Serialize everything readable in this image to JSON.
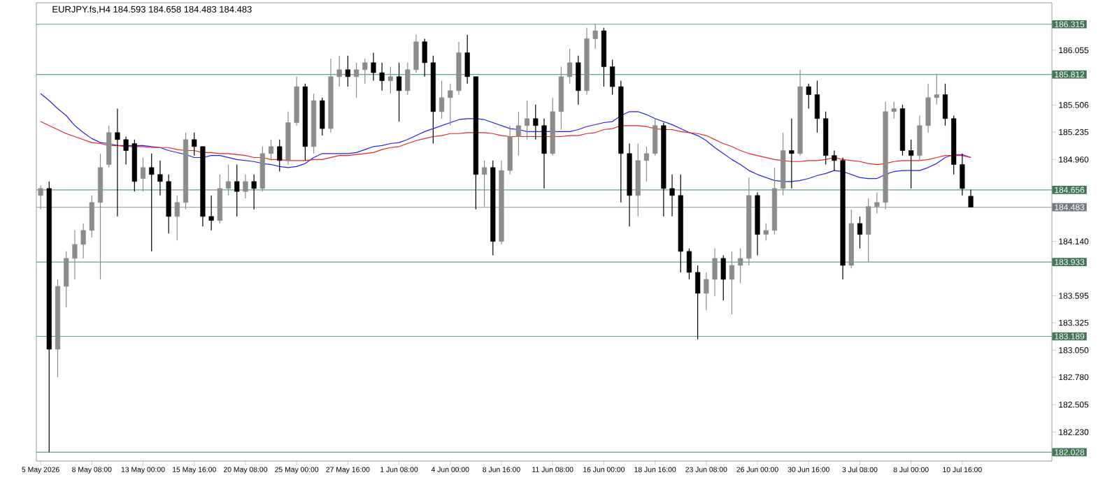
{
  "chart_data": {
    "type": "candlestick",
    "title": "EURJPY.fs,H4 184.593 184.658 184.483 184.483",
    "categories": [
      "5 May 2026",
      null,
      null,
      null,
      null,
      null,
      "8 May 08:00",
      null,
      null,
      null,
      null,
      null,
      "13 May 00:00",
      null,
      null,
      null,
      null,
      null,
      "15 May 16:00",
      null,
      null,
      null,
      null,
      null,
      "20 May 08:00",
      null,
      null,
      null,
      null,
      null,
      "25 May 00:00",
      null,
      null,
      null,
      null,
      null,
      "27 May 16:00",
      null,
      null,
      null,
      null,
      null,
      "1 Jun 08:00",
      null,
      null,
      null,
      null,
      null,
      "4 Jun 00:00",
      null,
      null,
      null,
      null,
      null,
      "8 Jun 16:00",
      null,
      null,
      null,
      null,
      null,
      "11 Jun 08:00",
      null,
      null,
      null,
      null,
      null,
      "16 Jun 00:00",
      null,
      null,
      null,
      null,
      null,
      "18 Jun 16:00",
      null,
      null,
      null,
      null,
      null,
      "23 Jun 08:00",
      null,
      null,
      null,
      null,
      null,
      "26 Jun 00:00",
      null,
      null,
      null,
      null,
      null,
      "30 Jun 16:00",
      null,
      null,
      null,
      null,
      null,
      "3 Jul 08:00",
      null,
      null,
      null,
      null,
      null,
      "8 Jul 00:00",
      null,
      null,
      null,
      null,
      null,
      "10 Jul 16:00",
      null,
      null,
      null,
      null,
      null,
      null,
      null,
      null,
      null,
      null
    ],
    "colors": [
      "#8c8c8c",
      "#000000",
      "#8c8c8c",
      "#8c8c8c",
      "#8c8c8c",
      "#8c8c8c",
      "#8c8c8c",
      "#8c8c8c",
      "#8c8c8c",
      "#000000",
      "#000000",
      "#000000",
      "#8c8c8c",
      "#000000",
      "#000000",
      "#000000",
      "#8c8c8c",
      "#8c8c8c",
      "#000000",
      "#000000",
      "#000000",
      "#8c8c8c",
      "#8c8c8c",
      "#000000",
      "#8c8c8c",
      "#000000",
      "#8c8c8c",
      "#8c8c8c",
      "#000000",
      "#8c8c8c",
      "#8c8c8c",
      "#000000",
      "#8c8c8c",
      "#000000",
      "#8c8c8c",
      "#8c8c8c",
      "#000000",
      "#8c8c8c",
      "#8c8c8c",
      "#000000",
      "#000000",
      "#8c8c8c",
      "#000000",
      "#8c8c8c",
      "#8c8c8c",
      "#000000",
      "#000000",
      "#8c8c8c",
      "#8c8c8c",
      "#8c8c8c",
      "#000000",
      "#000000",
      "#8c8c8c",
      "#000000",
      "#8c8c8c",
      "#8c8c8c",
      "#8c8c8c",
      "#8c8c8c",
      "#000000",
      "#000000",
      "#8c8c8c",
      "#8c8c8c",
      "#8c8c8c",
      "#000000",
      "#8c8c8c",
      "#8c8c8c",
      "#000000",
      "#000000",
      "#000000",
      "#000000",
      "#8c8c8c",
      "#8c8c8c",
      "#8c8c8c",
      "#000000",
      "#000000",
      "#000000",
      "#000000",
      "#000000",
      "#8c8c8c",
      "#8c8c8c",
      "#000000",
      "#8c8c8c",
      "#8c8c8c",
      "#8c8c8c",
      "#000000",
      "#8c8c8c",
      "#8c8c8c",
      "#8c8c8c",
      "#000000",
      "#8c8c8c",
      "#000000",
      "#000000",
      "#000000",
      "#000000",
      "#000000",
      "#8c8c8c",
      "#000000",
      "#8c8c8c",
      "#8c8c8c",
      "#8c8c8c",
      "#8c8c8c",
      "#000000",
      "#000000",
      "#8c8c8c",
      "#8c8c8c",
      "#8c8c8c",
      "#000000",
      "#000000",
      "#000000",
      "#000000",
      null,
      null,
      null,
      null,
      null,
      null,
      null,
      null,
      null
    ],
    "ohlc": [
      [
        184.6,
        184.7,
        184.46,
        184.67
      ],
      [
        184.67,
        184.74,
        182.03,
        183.06
      ],
      [
        183.06,
        183.76,
        182.78,
        183.69
      ],
      [
        183.69,
        184.04,
        183.48,
        183.97
      ],
      [
        183.97,
        184.25,
        183.76,
        184.11
      ],
      [
        184.11,
        184.32,
        183.97,
        184.25
      ],
      [
        184.25,
        184.6,
        184.18,
        184.53
      ],
      [
        184.53,
        185.02,
        183.76,
        184.88
      ],
      [
        184.91,
        185.3,
        184.88,
        185.23
      ],
      [
        185.23,
        185.47,
        184.39,
        185.16
      ],
      [
        185.16,
        185.19,
        184.91,
        185.05
      ],
      [
        185.12,
        185.16,
        184.64,
        184.74
      ],
      [
        184.77,
        184.98,
        184.64,
        184.88
      ],
      [
        184.88,
        185.02,
        184.04,
        184.81
      ],
      [
        184.81,
        184.95,
        184.6,
        184.74
      ],
      [
        184.74,
        184.81,
        184.22,
        184.39
      ],
      [
        184.39,
        184.6,
        184.15,
        184.53
      ],
      [
        184.53,
        185.23,
        184.46,
        185.16
      ],
      [
        185.16,
        185.23,
        185.0,
        185.09
      ],
      [
        185.09,
        185.09,
        184.29,
        184.39
      ],
      [
        184.39,
        184.6,
        184.25,
        184.35
      ],
      [
        184.35,
        184.81,
        184.32,
        184.67
      ],
      [
        184.67,
        184.91,
        184.6,
        184.74
      ],
      [
        184.74,
        184.91,
        184.39,
        184.64
      ],
      [
        184.64,
        184.81,
        184.57,
        184.74
      ],
      [
        184.74,
        184.81,
        184.46,
        184.67
      ],
      [
        184.67,
        185.09,
        184.64,
        185.02
      ],
      [
        185.02,
        185.16,
        184.95,
        185.09
      ],
      [
        185.09,
        185.16,
        184.84,
        184.95
      ],
      [
        184.95,
        185.44,
        184.91,
        185.33
      ],
      [
        185.33,
        185.79,
        185.3,
        185.69
      ],
      [
        185.69,
        185.72,
        184.95,
        185.09
      ],
      [
        185.09,
        185.62,
        185.02,
        185.55
      ],
      [
        185.55,
        185.58,
        185.2,
        185.27
      ],
      [
        185.27,
        185.97,
        185.23,
        185.79
      ],
      [
        185.79,
        186.0,
        185.69,
        185.86
      ],
      [
        185.86,
        186.0,
        185.69,
        185.79
      ],
      [
        185.79,
        185.93,
        185.58,
        185.86
      ],
      [
        185.86,
        185.97,
        185.72,
        185.93
      ],
      [
        185.93,
        186.03,
        185.75,
        185.83
      ],
      [
        185.83,
        185.93,
        185.65,
        185.75
      ],
      [
        185.75,
        185.89,
        185.62,
        185.79
      ],
      [
        185.79,
        185.93,
        185.34,
        185.65
      ],
      [
        185.65,
        185.93,
        185.61,
        185.86
      ],
      [
        185.86,
        186.21,
        185.83,
        186.14
      ],
      [
        186.14,
        186.17,
        185.79,
        185.93
      ],
      [
        185.93,
        186.0,
        185.12,
        185.44
      ],
      [
        185.44,
        185.75,
        185.37,
        185.58
      ],
      [
        185.58,
        185.72,
        185.3,
        185.65
      ],
      [
        185.65,
        186.14,
        185.61,
        186.03
      ],
      [
        186.03,
        186.21,
        185.72,
        185.79
      ],
      [
        185.79,
        185.79,
        184.46,
        184.81
      ],
      [
        184.81,
        184.95,
        184.49,
        184.88
      ],
      [
        184.88,
        184.95,
        184.0,
        184.14
      ],
      [
        184.14,
        184.95,
        184.11,
        184.85
      ],
      [
        184.85,
        185.3,
        184.81,
        185.19
      ],
      [
        185.19,
        185.44,
        185.0,
        185.3
      ],
      [
        185.3,
        185.55,
        185.16,
        185.37
      ],
      [
        185.37,
        185.51,
        185.16,
        185.3
      ],
      [
        185.3,
        185.37,
        184.67,
        185.02
      ],
      [
        185.02,
        185.58,
        185.0,
        185.44
      ],
      [
        185.44,
        185.89,
        185.26,
        185.79
      ],
      [
        185.79,
        186.07,
        185.72,
        185.93
      ],
      [
        185.93,
        186.0,
        185.51,
        185.65
      ],
      [
        185.65,
        186.28,
        185.61,
        186.17
      ],
      [
        186.17,
        186.32,
        186.07,
        186.25
      ],
      [
        186.25,
        186.28,
        185.69,
        185.89
      ],
      [
        185.89,
        185.96,
        185.61,
        185.69
      ],
      [
        185.69,
        185.75,
        184.53,
        185.02
      ],
      [
        185.02,
        185.12,
        184.29,
        184.6
      ],
      [
        184.6,
        185.12,
        184.39,
        184.95
      ],
      [
        184.95,
        185.09,
        184.74,
        185.02
      ],
      [
        185.02,
        185.37,
        185.0,
        185.3
      ],
      [
        185.3,
        185.33,
        184.39,
        184.67
      ],
      [
        184.67,
        184.81,
        184.39,
        184.6
      ],
      [
        184.6,
        184.81,
        183.83,
        184.04
      ],
      [
        184.04,
        184.07,
        183.76,
        183.83
      ],
      [
        183.83,
        183.9,
        183.16,
        183.62
      ],
      [
        183.62,
        183.83,
        183.45,
        183.76
      ],
      [
        183.76,
        184.07,
        183.59,
        183.97
      ],
      [
        183.97,
        184.0,
        183.55,
        183.76
      ],
      [
        183.76,
        184.04,
        183.41,
        183.9
      ],
      [
        183.9,
        184.07,
        183.72,
        183.97
      ],
      [
        183.97,
        184.78,
        183.9,
        184.6
      ],
      [
        184.6,
        184.63,
        184.0,
        184.21
      ],
      [
        184.21,
        184.32,
        184.15,
        184.25
      ],
      [
        184.25,
        184.88,
        184.21,
        184.67
      ],
      [
        184.67,
        185.23,
        184.6,
        185.05
      ],
      [
        185.05,
        185.37,
        184.67,
        185.02
      ],
      [
        185.02,
        185.86,
        185.0,
        185.69
      ],
      [
        185.69,
        185.72,
        185.47,
        185.61
      ],
      [
        185.61,
        185.75,
        185.23,
        185.37
      ],
      [
        185.37,
        185.44,
        184.91,
        185.0
      ],
      [
        185.0,
        185.05,
        184.85,
        184.95
      ],
      [
        184.95,
        184.98,
        183.76,
        183.9
      ],
      [
        183.9,
        184.46,
        183.87,
        184.32
      ],
      [
        184.32,
        184.39,
        184.07,
        184.21
      ],
      [
        184.21,
        184.57,
        183.93,
        184.49
      ],
      [
        184.49,
        184.63,
        184.42,
        184.53
      ],
      [
        184.53,
        185.54,
        184.46,
        185.44
      ],
      [
        185.44,
        185.54,
        185.37,
        185.47
      ],
      [
        185.47,
        185.51,
        185.0,
        185.05
      ],
      [
        185.05,
        185.16,
        184.67,
        185.0
      ],
      [
        185.0,
        185.4,
        184.95,
        185.3
      ],
      [
        185.3,
        185.72,
        185.23,
        185.58
      ],
      [
        185.58,
        185.82,
        185.51,
        185.61
      ],
      [
        185.61,
        185.72,
        185.3,
        185.37
      ],
      [
        185.37,
        185.4,
        184.81,
        184.91
      ],
      [
        184.91,
        185.02,
        184.6,
        184.67
      ],
      [
        184.593,
        184.658,
        184.483,
        184.483
      ],
      null,
      null,
      null,
      null,
      null,
      null,
      null,
      null,
      null
    ],
    "series": [
      {
        "type": "line",
        "color": "#2222ee",
        "values": [
          185.62,
          185.55,
          185.47,
          185.4,
          185.3,
          185.23,
          185.17,
          185.13,
          185.12,
          185.1,
          185.1,
          185.1,
          185.1,
          185.09,
          185.08,
          185.05,
          185.03,
          185.01,
          184.98,
          184.98,
          185.0,
          185.0,
          184.98,
          184.96,
          184.95,
          184.94,
          184.92,
          184.91,
          184.89,
          184.88,
          184.89,
          184.92,
          184.98,
          185.02,
          185.02,
          185.02,
          185.02,
          185.03,
          185.06,
          185.09,
          185.1,
          185.12,
          185.13,
          185.16,
          185.2,
          185.24,
          185.27,
          185.3,
          185.33,
          185.36,
          185.37,
          185.37,
          185.36,
          185.33,
          185.3,
          185.27,
          185.26,
          185.24,
          185.24,
          185.24,
          185.24,
          185.24,
          185.24,
          185.26,
          185.29,
          185.31,
          185.33,
          185.34,
          185.4,
          185.44,
          185.44,
          185.41,
          185.37,
          185.34,
          185.31,
          185.27,
          185.23,
          185.2,
          185.15,
          185.08,
          185.02,
          184.96,
          184.91,
          184.85,
          184.81,
          184.78,
          184.75,
          184.74,
          184.74,
          184.75,
          184.77,
          184.8,
          184.82,
          184.85,
          184.84,
          184.81,
          184.78,
          184.77,
          184.77,
          184.81,
          184.84,
          184.85,
          184.85,
          184.85,
          184.88,
          184.92,
          184.98,
          185.01,
          185.01,
          184.98,
          null,
          null,
          null,
          null,
          null,
          null,
          null,
          null,
          null
        ]
      },
      {
        "type": "line",
        "color": "#ee2222",
        "values": [
          185.34,
          185.3,
          185.26,
          185.22,
          185.19,
          185.16,
          185.13,
          185.12,
          185.1,
          185.1,
          185.09,
          185.09,
          185.09,
          185.08,
          185.08,
          185.08,
          185.06,
          185.05,
          185.05,
          185.03,
          185.03,
          185.02,
          185.02,
          185.01,
          185.0,
          184.98,
          184.98,
          184.96,
          184.96,
          184.95,
          184.95,
          184.95,
          184.96,
          184.96,
          184.98,
          185.0,
          185.0,
          185.01,
          185.02,
          185.03,
          185.06,
          185.08,
          185.09,
          185.12,
          185.15,
          185.17,
          185.19,
          185.2,
          185.22,
          185.22,
          185.23,
          185.23,
          185.23,
          185.22,
          185.2,
          185.19,
          185.19,
          185.19,
          185.19,
          185.19,
          185.19,
          185.19,
          185.2,
          185.2,
          185.22,
          185.23,
          185.26,
          185.27,
          185.3,
          185.3,
          185.3,
          185.29,
          185.27,
          185.26,
          185.26,
          185.24,
          185.23,
          185.22,
          185.2,
          185.16,
          185.12,
          185.09,
          185.05,
          185.02,
          185.0,
          184.98,
          184.96,
          184.95,
          184.94,
          184.94,
          184.95,
          184.95,
          184.96,
          184.98,
          184.96,
          184.95,
          184.94,
          184.92,
          184.91,
          184.92,
          184.94,
          184.95,
          184.95,
          184.95,
          184.96,
          184.98,
          185.0,
          185.0,
          185.0,
          184.98,
          null,
          null,
          null,
          null,
          null,
          null,
          null,
          null,
          null
        ]
      }
    ],
    "ylim": [
      181.94,
      186.53
    ],
    "yticks": [
      186.055,
      185.506,
      185.235,
      {
        "value": 184.96,
        "label": "184.960"
      },
      {
        "value": 184.14,
        "label": "184.140"
      },
      183.595,
      183.325,
      {
        "value": 183.05,
        "label": "183.050"
      },
      {
        "value": 182.78,
        "label": "182.780"
      },
      182.505,
      {
        "value": 182.23,
        "label": "182.230"
      }
    ],
    "ref_lines": [
      {
        "axis": "y",
        "value": 186.315,
        "label": "186.315",
        "color": "#5fa77c"
      },
      {
        "axis": "y",
        "value": 185.812,
        "label": "185.812",
        "color": "#5fa77c"
      },
      {
        "axis": "y",
        "value": 184.656,
        "label": "184.656",
        "color": "#5fa77c"
      },
      {
        "axis": "y",
        "value": 184.483,
        "label": "184.483",
        "color": "#a3b0bc"
      },
      {
        "axis": "y",
        "value": 183.933,
        "label": "183.933",
        "color": "#5fa77c"
      },
      {
        "axis": "y",
        "value": 183.189,
        "label": "183.189",
        "color": "#5fa77c"
      },
      {
        "axis": "y",
        "value": 182.028,
        "label": "182.028",
        "color": "#5fa77c"
      }
    ]
  }
}
